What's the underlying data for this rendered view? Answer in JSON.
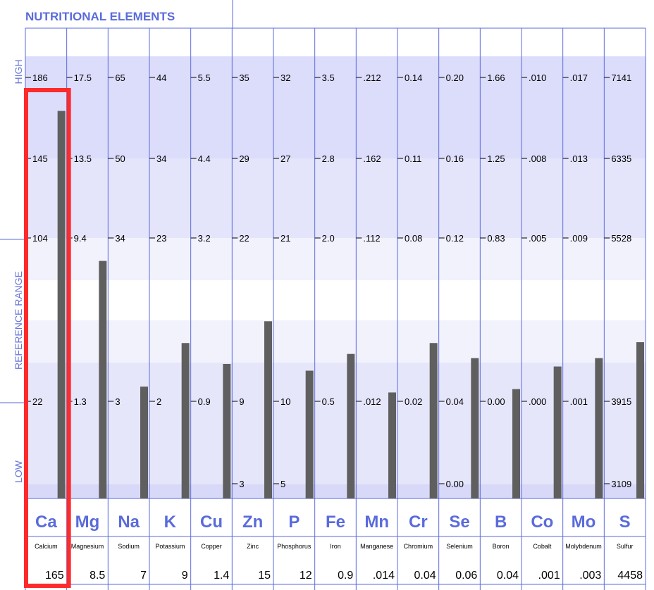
{
  "chart_data": {
    "type": "bar",
    "title": "NUTRITIONAL ELEMENTS",
    "zones": [
      "HIGH",
      "REFERENCE RANGE",
      "LOW"
    ],
    "colors": {
      "bar": "#5f5f5f",
      "accent": "#5a6bdc",
      "highlight": "#ff2a2a",
      "band_dark": "#dcdcfb",
      "band_light": "#f2f2fd"
    },
    "elements": [
      {
        "symbol": "Ca",
        "name": "Calcium",
        "result": "165",
        "level": 0.92,
        "ticks": [
          "186",
          "145",
          "104",
          "22"
        ]
      },
      {
        "symbol": "Mg",
        "name": "Magnesium",
        "result": "8.5",
        "level": 0.562,
        "ticks": [
          "17.5",
          "13.5",
          "9.4",
          "1.3"
        ]
      },
      {
        "symbol": "Na",
        "name": "Sodium",
        "result": "7",
        "level": 0.262,
        "ticks": [
          "65",
          "50",
          "34",
          "3"
        ]
      },
      {
        "symbol": "K",
        "name": "Potassium",
        "result": "9",
        "level": 0.366,
        "ticks": [
          "44",
          "34",
          "23",
          "2"
        ]
      },
      {
        "symbol": "Cu",
        "name": "Copper",
        "result": "1.4",
        "level": 0.316,
        "ticks": [
          "5.5",
          "4.4",
          "3.2",
          "0.9"
        ]
      },
      {
        "symbol": "Zn",
        "name": "Zinc",
        "result": "15",
        "level": 0.418,
        "ticks": [
          "35",
          "29",
          "22",
          "9"
        ],
        "low": "3"
      },
      {
        "symbol": "P",
        "name": "Phosphorus",
        "result": "12",
        "level": 0.3,
        "ticks": [
          "32",
          "27",
          "21",
          "10"
        ],
        "low": "5"
      },
      {
        "symbol": "Fe",
        "name": "Iron",
        "result": "0.9",
        "level": 0.34,
        "ticks": [
          "3.5",
          "2.8",
          "2.0",
          "0.5"
        ]
      },
      {
        "symbol": "Mn",
        "name": "Manganese",
        "result": ".014",
        "level": 0.248,
        "ticks": [
          ".212",
          ".162",
          ".112",
          ".012"
        ]
      },
      {
        "symbol": "Cr",
        "name": "Chromium",
        "result": "0.04",
        "level": 0.366,
        "ticks": [
          "0.14",
          "0.11",
          "0.08",
          "0.02"
        ]
      },
      {
        "symbol": "Se",
        "name": "Selenium",
        "result": "0.06",
        "level": 0.33,
        "ticks": [
          "0.20",
          "0.16",
          "0.12",
          "0.04"
        ],
        "low": "0.00"
      },
      {
        "symbol": "B",
        "name": "Boron",
        "result": "0.04",
        "level": 0.256,
        "ticks": [
          "1.66",
          "1.25",
          "0.83",
          "0.00"
        ]
      },
      {
        "symbol": "Co",
        "name": "Cobalt",
        "result": ".001",
        "level": 0.31,
        "ticks": [
          ".010",
          ".008",
          ".005",
          ".000"
        ]
      },
      {
        "symbol": "Mo",
        "name": "Molybdenum",
        "result": ".003",
        "level": 0.33,
        "ticks": [
          ".017",
          ".013",
          ".009",
          ".001"
        ]
      },
      {
        "symbol": "S",
        "name": "Sulfur",
        "result": "4458",
        "level": 0.368,
        "ticks": [
          "7141",
          "6335",
          "5528",
          "3915"
        ],
        "low": "3109"
      }
    ],
    "highlighted": "Ca"
  }
}
